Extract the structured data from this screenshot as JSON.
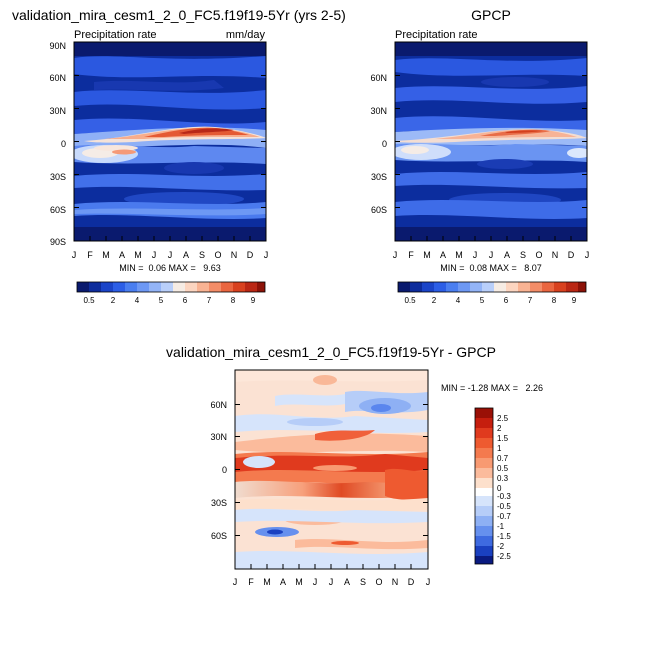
{
  "chart_data": [
    {
      "type": "heatmap",
      "title": "validation_mira_cesm1_2_0_FC5.f19f19-5Yr (yrs 2-5)",
      "left_label": "Precipitation rate",
      "units": "mm/day",
      "stats": "MIN =  0.06 MAX =   9.63",
      "x_ticks": [
        "J",
        "F",
        "M",
        "A",
        "M",
        "J",
        "J",
        "A",
        "S",
        "O",
        "N",
        "D",
        "J"
      ],
      "y_ticks": [
        "90N",
        "60N",
        "30N",
        "0",
        "30S",
        "60S",
        "90S"
      ],
      "y_range": [
        -90,
        90
      ],
      "min": 0.06,
      "max": 9.63,
      "colorbar_labels": [
        "0.5",
        "2",
        "4",
        "5",
        "6",
        "7",
        "8",
        "9"
      ],
      "colorbar_colors": [
        "#0a1a6e",
        "#0d2c9c",
        "#1a44c8",
        "#2c5ee6",
        "#4a7ef0",
        "#6d98f4",
        "#93b4f7",
        "#b9cffa",
        "#f6ece4",
        "#fcd5c0",
        "#f9b393",
        "#f48d68",
        "#ea6640",
        "#d8411f",
        "#ba2714",
        "#8c1208"
      ],
      "itcz_peak": 9.63
    },
    {
      "type": "heatmap",
      "title": "GPCP",
      "left_label": "Precipitation rate",
      "stats": "MIN =  0.08 MAX =   8.07",
      "x_ticks": [
        "J",
        "F",
        "M",
        "A",
        "M",
        "J",
        "J",
        "A",
        "S",
        "O",
        "N",
        "D",
        "J"
      ],
      "y_ticks": [
        "60N",
        "30N",
        "0",
        "30S",
        "60S"
      ],
      "y_range": [
        -90,
        90
      ],
      "min": 0.08,
      "max": 8.07,
      "colorbar_labels": [
        "0.5",
        "2",
        "4",
        "5",
        "6",
        "7",
        "8",
        "9"
      ],
      "itcz_peak": 8.07
    },
    {
      "type": "heatmap",
      "title": "validation_mira_cesm1_2_0_FC5.f19f19-5Yr - GPCP",
      "stats": "MIN = -1.28 MAX =   2.26",
      "x_ticks": [
        "J",
        "F",
        "M",
        "A",
        "M",
        "J",
        "J",
        "A",
        "S",
        "O",
        "N",
        "D",
        "J"
      ],
      "y_ticks": [
        "60N",
        "30N",
        "0",
        "30S",
        "60S"
      ],
      "y_range": [
        -90,
        90
      ],
      "min": -1.28,
      "max": 2.26,
      "colorbar_labels": [
        "2.5",
        "2",
        "1.5",
        "1",
        "0.7",
        "0.5",
        "0.3",
        "0",
        "-0.3",
        "-0.5",
        "-0.7",
        "-1",
        "-1.5",
        "-2",
        "-2.5"
      ],
      "colorbar_colors": [
        "#9a1006",
        "#c61e0e",
        "#e03a1e",
        "#ee5a30",
        "#f47a4e",
        "#f89a72",
        "#fbbb9c",
        "#fde0cc",
        "#ffffff",
        "#d6e4fb",
        "#b6cdf8",
        "#8eb0f4",
        "#6690ee",
        "#3e6ae0",
        "#1a40c0",
        "#0a1a80"
      ]
    }
  ]
}
